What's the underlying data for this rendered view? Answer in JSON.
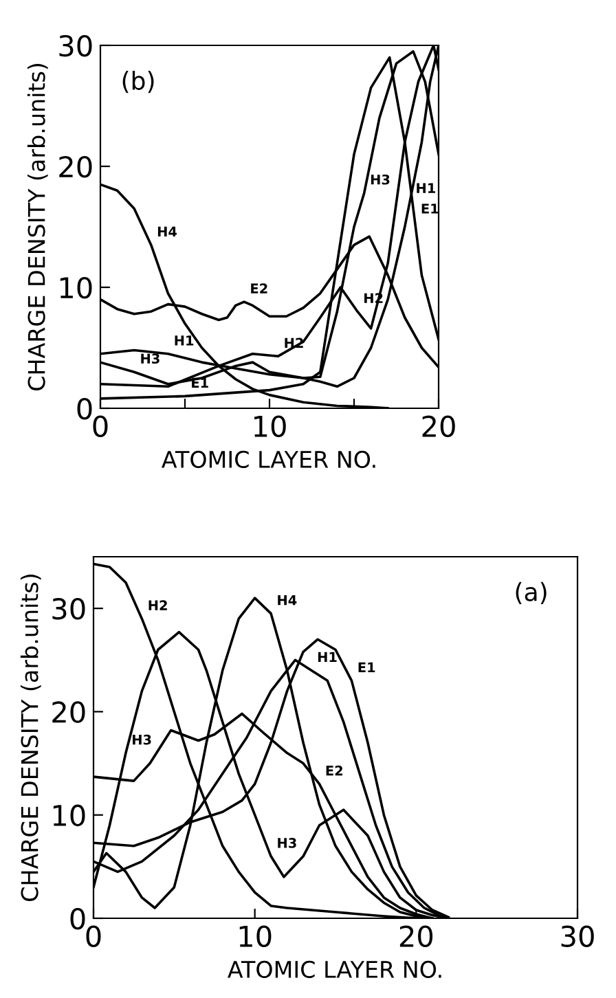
{
  "chart_data": [
    {
      "type": "line",
      "xlabel": "ATOMIC LAYER NO.",
      "ylabel": "CHARGE DENSITY (arb.units)",
      "xlim": [
        0,
        20
      ],
      "ylim": [
        0,
        30
      ],
      "xticks": [
        0,
        {
          "value": 5,
          "label": null
        },
        10,
        {
          "value": 15,
          "label": null
        },
        20
      ],
      "yticks": [
        0,
        10,
        20,
        30
      ],
      "grid": false,
      "legend": false,
      "marker": "none",
      "line_style": "solid",
      "series": [
        {
          "color": "#000000",
          "x": [
            0,
            1,
            2,
            3,
            4,
            5,
            6,
            7,
            8,
            9,
            10,
            12,
            14,
            16,
            17
          ],
          "values": [
            18.5,
            18,
            16.5,
            13.5,
            9.5,
            7,
            5,
            3.5,
            2.4,
            1.6,
            1.1,
            0.5,
            0.2,
            0.1,
            0
          ]
        },
        {
          "color": "#000000",
          "x": [
            0,
            1,
            2,
            3,
            4,
            5,
            6,
            7,
            7.5,
            8,
            8.5,
            9,
            10,
            11,
            12,
            13,
            14,
            15,
            15.9,
            17,
            18,
            19,
            20
          ],
          "values": [
            9,
            8.2,
            7.8,
            8,
            8.6,
            8.4,
            7.8,
            7.3,
            7.5,
            8.5,
            8.8,
            8.5,
            7.6,
            7.6,
            8.3,
            9.5,
            11.5,
            13.5,
            14.2,
            11,
            7.5,
            5,
            3.4
          ]
        },
        {
          "color": "#000000",
          "x": [
            0,
            2,
            4,
            6,
            8,
            10,
            12,
            13,
            14,
            15,
            16,
            17,
            18,
            19,
            19.5,
            20
          ],
          "values": [
            4.5,
            4.8,
            4.5,
            3.8,
            3.3,
            2.8,
            2.5,
            2.2,
            1.8,
            2.5,
            5,
            9,
            15,
            22,
            27,
            30
          ]
        },
        {
          "color": "#000000",
          "x": [
            0,
            2,
            4,
            6,
            8,
            9,
            10,
            12,
            13,
            14,
            15,
            15.6,
            16.5,
            17.5,
            18.5,
            19.2,
            20
          ],
          "values": [
            3.8,
            3,
            2,
            2.5,
            3.5,
            3.8,
            3,
            2.5,
            2.6,
            8,
            15,
            17.8,
            24,
            28.5,
            29.5,
            27,
            21
          ]
        },
        {
          "color": "#000000",
          "x": [
            0,
            2,
            4,
            7,
            9,
            10.5,
            12,
            13,
            14.2,
            15.2,
            16,
            17,
            18,
            18.8,
            19.7,
            20
          ],
          "values": [
            2,
            1.9,
            1.8,
            3.5,
            4.5,
            4.3,
            5.5,
            7.5,
            10,
            8,
            6.6,
            12,
            22,
            27,
            30,
            28
          ]
        },
        {
          "color": "#000000",
          "x": [
            0,
            5,
            10,
            12,
            13,
            14,
            15,
            16,
            17.1,
            18,
            19,
            20
          ],
          "values": [
            0.8,
            1,
            1.5,
            2,
            3,
            12,
            21,
            26.5,
            29,
            22,
            11,
            5.7
          ]
        }
      ],
      "annotations": [
        "(b)",
        {
          "text": "H4",
          "x": 3,
          "y": 13.5
        },
        {
          "text": "E2",
          "x": 8.5,
          "y": 8.8
        },
        {
          "text": "H1",
          "x": 4,
          "y": 4.5
        },
        {
          "text": "H3",
          "x": 2,
          "y": 3
        },
        {
          "text": "H2",
          "x": 10.5,
          "y": 4.3
        },
        {
          "text": "E1",
          "x": 5,
          "y": 1
        },
        {
          "text": "E1",
          "x": 18.6,
          "y": 15.4
        },
        {
          "text": "H3",
          "x": 15.6,
          "y": 17.8
        },
        {
          "text": "H2",
          "x": 15.2,
          "y": 8
        },
        {
          "text": "H1",
          "x": 18.3,
          "y": 17.1
        }
      ]
    },
    {
      "type": "line",
      "xlabel": "ATOMIC LAYER NO.",
      "ylabel": "CHARGE DENSITY (arb.units)",
      "xlim": [
        0,
        30
      ],
      "ylim": [
        0,
        35
      ],
      "xticks": [
        0,
        10,
        20,
        30
      ],
      "yticks": [
        0,
        10,
        20,
        30
      ],
      "grid": false,
      "legend": false,
      "marker": "none",
      "line_style": "solid",
      "series": [
        {
          "color": "#000000",
          "x": [
            0,
            1,
            2,
            3,
            4,
            5,
            6,
            7,
            8,
            9,
            10,
            11,
            12,
            15,
            18,
            20
          ],
          "values": [
            34.3,
            34,
            32.5,
            29,
            25,
            20,
            15,
            11,
            7,
            4.5,
            2.5,
            1.2,
            1,
            0.6,
            0.2,
            0
          ]
        },
        {
          "color": "#000000",
          "x": [
            0,
            1,
            2,
            3,
            4,
            5.3,
            6.5,
            7,
            8,
            9,
            10,
            11,
            11.8,
            13,
            14,
            15.5,
            17,
            18,
            19,
            20,
            21,
            22
          ],
          "values": [
            3,
            9,
            16,
            22,
            26,
            27.7,
            26,
            24,
            19,
            14,
            10,
            6,
            4,
            6,
            9,
            10.5,
            8,
            4.5,
            2,
            0.8,
            0.3,
            0
          ]
        },
        {
          "color": "#000000",
          "x": [
            0,
            0.8,
            2,
            3,
            3.8,
            5,
            6,
            7,
            8,
            9,
            10,
            11,
            12,
            13,
            14,
            15,
            16,
            17,
            18,
            19,
            20,
            21
          ],
          "values": [
            4.5,
            6.3,
            4.5,
            2,
            1,
            3,
            9,
            17,
            24,
            29,
            31,
            29.5,
            24,
            17,
            11,
            7,
            4.5,
            2.8,
            1.5,
            0.6,
            0.2,
            0
          ]
        },
        {
          "color": "#000000",
          "x": [
            0,
            2.5,
            3.5,
            4.8,
            6.5,
            7.5,
            9.2,
            10.5,
            12,
            13,
            14,
            15,
            16,
            17,
            18,
            19,
            20,
            21
          ],
          "values": [
            13.7,
            13.3,
            15,
            18.2,
            17.2,
            17.8,
            19.8,
            18,
            16,
            15,
            13,
            10,
            7,
            4,
            2,
            1,
            0.4,
            0
          ]
        },
        {
          "color": "#000000",
          "x": [
            0,
            1.5,
            3,
            5,
            6.5,
            8,
            9.5,
            11,
            12.5,
            13.5,
            14.5,
            15.5,
            16.5,
            17.5,
            18.5,
            19.5,
            20.5,
            21.5,
            22
          ],
          "values": [
            5.5,
            4.5,
            5.5,
            8,
            10.5,
            14,
            17.5,
            22,
            25,
            24,
            23,
            19,
            14,
            9,
            5,
            2.5,
            1,
            0.2,
            0
          ]
        },
        {
          "color": "#000000",
          "x": [
            0,
            2.5,
            4,
            6,
            8,
            9.2,
            10,
            11,
            12,
            13,
            13.9,
            15,
            16,
            17,
            18,
            19,
            20,
            21,
            22
          ],
          "values": [
            7.3,
            7,
            7.8,
            9.3,
            10.3,
            11.4,
            13,
            17,
            22,
            25.8,
            27,
            26,
            23,
            17,
            10,
            5,
            2.2,
            0.8,
            0.1
          ]
        }
      ],
      "annotations": [
        "(a)",
        {
          "text": "H2",
          "x": 3,
          "y": 29
        },
        {
          "text": "H4",
          "x": 11,
          "y": 29.5
        },
        {
          "text": "E1",
          "x": 16,
          "y": 23
        },
        {
          "text": "H1",
          "x": 13.5,
          "y": 24
        },
        {
          "text": "H3",
          "x": 2,
          "y": 16
        },
        {
          "text": "E2",
          "x": 14,
          "y": 13
        },
        {
          "text": "H3",
          "x": 11,
          "y": 6
        }
      ]
    }
  ]
}
